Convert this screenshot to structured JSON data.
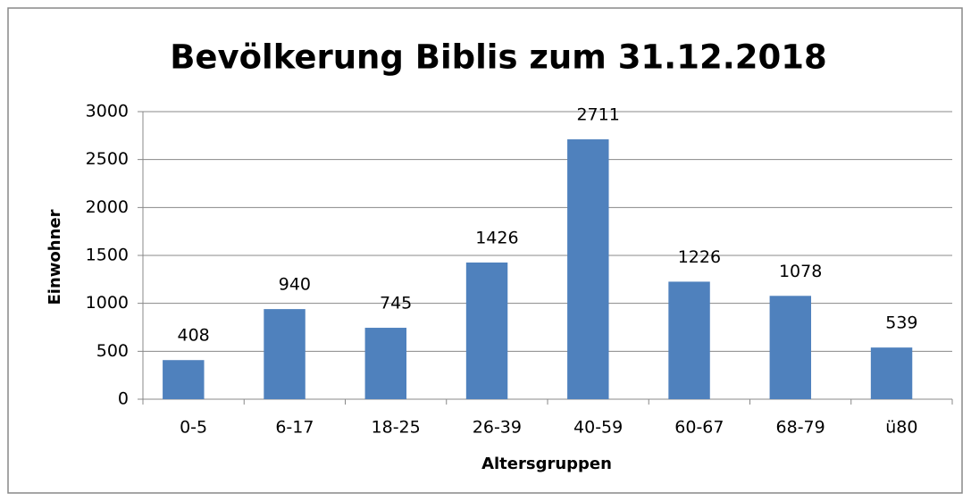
{
  "chart_data": {
    "type": "bar",
    "title": "Bevölkerung Biblis zum 31.12.2018",
    "x_label": "Altersgruppen",
    "y_label": "Einwohner",
    "categories": [
      "0-5",
      "6-17",
      "18-25",
      "26-39",
      "40-59",
      "60-67",
      "68-79",
      "ü80"
    ],
    "values": [
      408,
      940,
      745,
      1426,
      2711,
      1226,
      1078,
      539
    ],
    "color": "#4f81bd",
    "ylim": [
      0,
      3000
    ],
    "yticks": [
      0,
      500,
      1000,
      1500,
      2000,
      2500,
      3000
    ],
    "grid": true
  }
}
